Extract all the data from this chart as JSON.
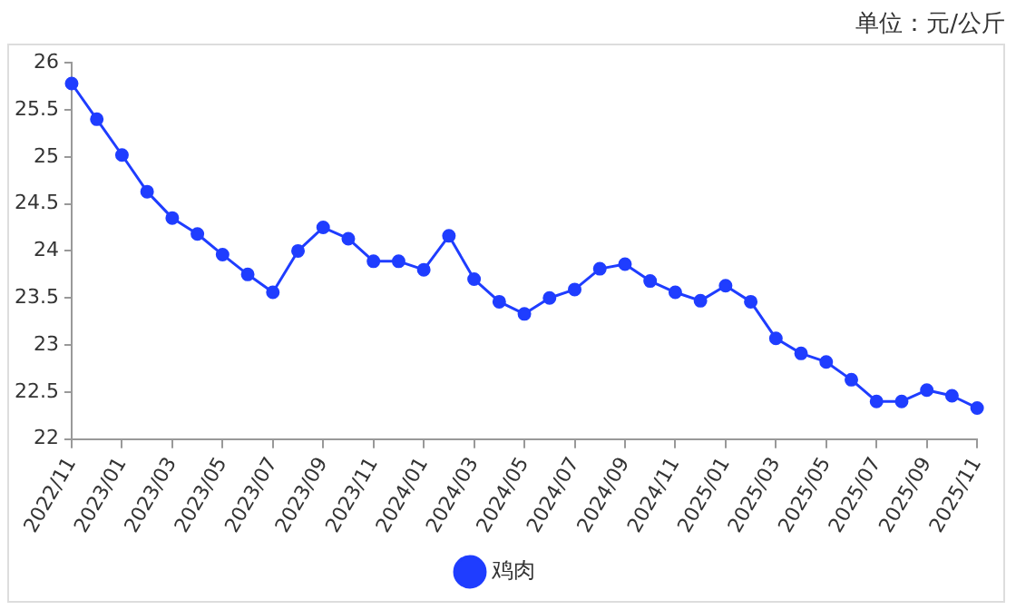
{
  "chart_data": {
    "type": "line",
    "annotations": [
      "单位：元/公斤"
    ],
    "categories": [
      "2022/11",
      null,
      "2023/01",
      null,
      "2023/03",
      null,
      "2023/05",
      null,
      "2023/07",
      null,
      "2023/09",
      null,
      "2023/11",
      null,
      "2024/01",
      null,
      "2024/03",
      null,
      "2024/05",
      null,
      "2024/07",
      null,
      "2024/09",
      null,
      "2024/11",
      null,
      "2025/01",
      null,
      "2025/03",
      null,
      "2025/05",
      null,
      "2025/07",
      null,
      "2025/09",
      null,
      "2025/11"
    ],
    "series": [
      {
        "name": "鸡肉",
        "color": "#1f3dff",
        "values": [
          25.78,
          25.4,
          25.02,
          24.63,
          24.35,
          24.18,
          23.96,
          23.75,
          23.56,
          24.0,
          24.25,
          24.13,
          23.89,
          23.89,
          23.8,
          24.16,
          23.7,
          23.46,
          23.33,
          23.5,
          23.59,
          23.81,
          23.86,
          23.68,
          23.56,
          23.47,
          23.63,
          23.46,
          23.07,
          22.91,
          22.82,
          22.63,
          22.4,
          22.4,
          22.52,
          22.46,
          22.33
        ]
      }
    ],
    "ylim": [
      22,
      26
    ],
    "yticks": [
      22,
      22.5,
      23,
      23.5,
      24,
      24.5,
      25,
      25.5,
      26
    ],
    "grid": false,
    "legend": "bottom",
    "marker": "circle",
    "line_style": "solid"
  }
}
